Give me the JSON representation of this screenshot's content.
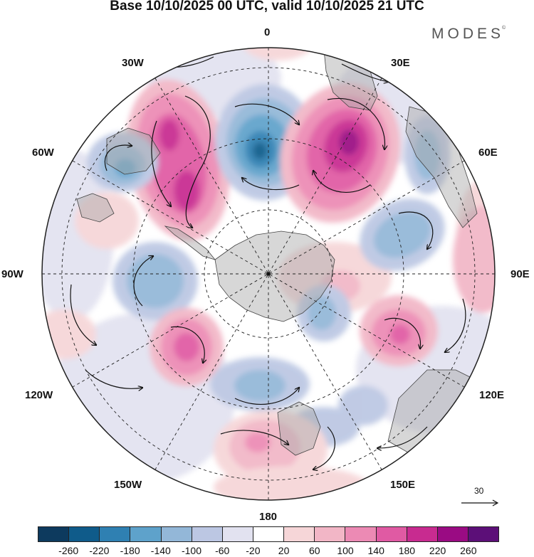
{
  "title": "Base 10/10/2025 00 UTC, valid 10/10/2025 21 UTC",
  "brand": "MODES",
  "brand_mark": "©",
  "longitude_labels": [
    "0",
    "30E",
    "60E",
    "90E",
    "120E",
    "150E",
    "180",
    "150W",
    "120W",
    "90W",
    "60W",
    "30W"
  ],
  "reference_vector": {
    "magnitude": "30",
    "icon": "arrow-right-icon"
  },
  "colorbar": {
    "ticks": [
      "-260",
      "-220",
      "-180",
      "-140",
      "-100",
      "-60",
      "-20",
      "20",
      "60",
      "100",
      "140",
      "180",
      "220",
      "260"
    ],
    "colors": [
      "#0d3a5e",
      "#0f5b8a",
      "#2f80b2",
      "#5ea2cb",
      "#93b7d8",
      "#bcc7e3",
      "#e2e2f0",
      "#ffffff",
      "#f6d6d8",
      "#f2b6c6",
      "#ec8ab4",
      "#e05aa3",
      "#c82b90",
      "#9a0b83",
      "#5c0f78"
    ]
  },
  "colors": {
    "land": "#a6a6a6",
    "frame": "#222222",
    "grid": "#222222"
  }
}
